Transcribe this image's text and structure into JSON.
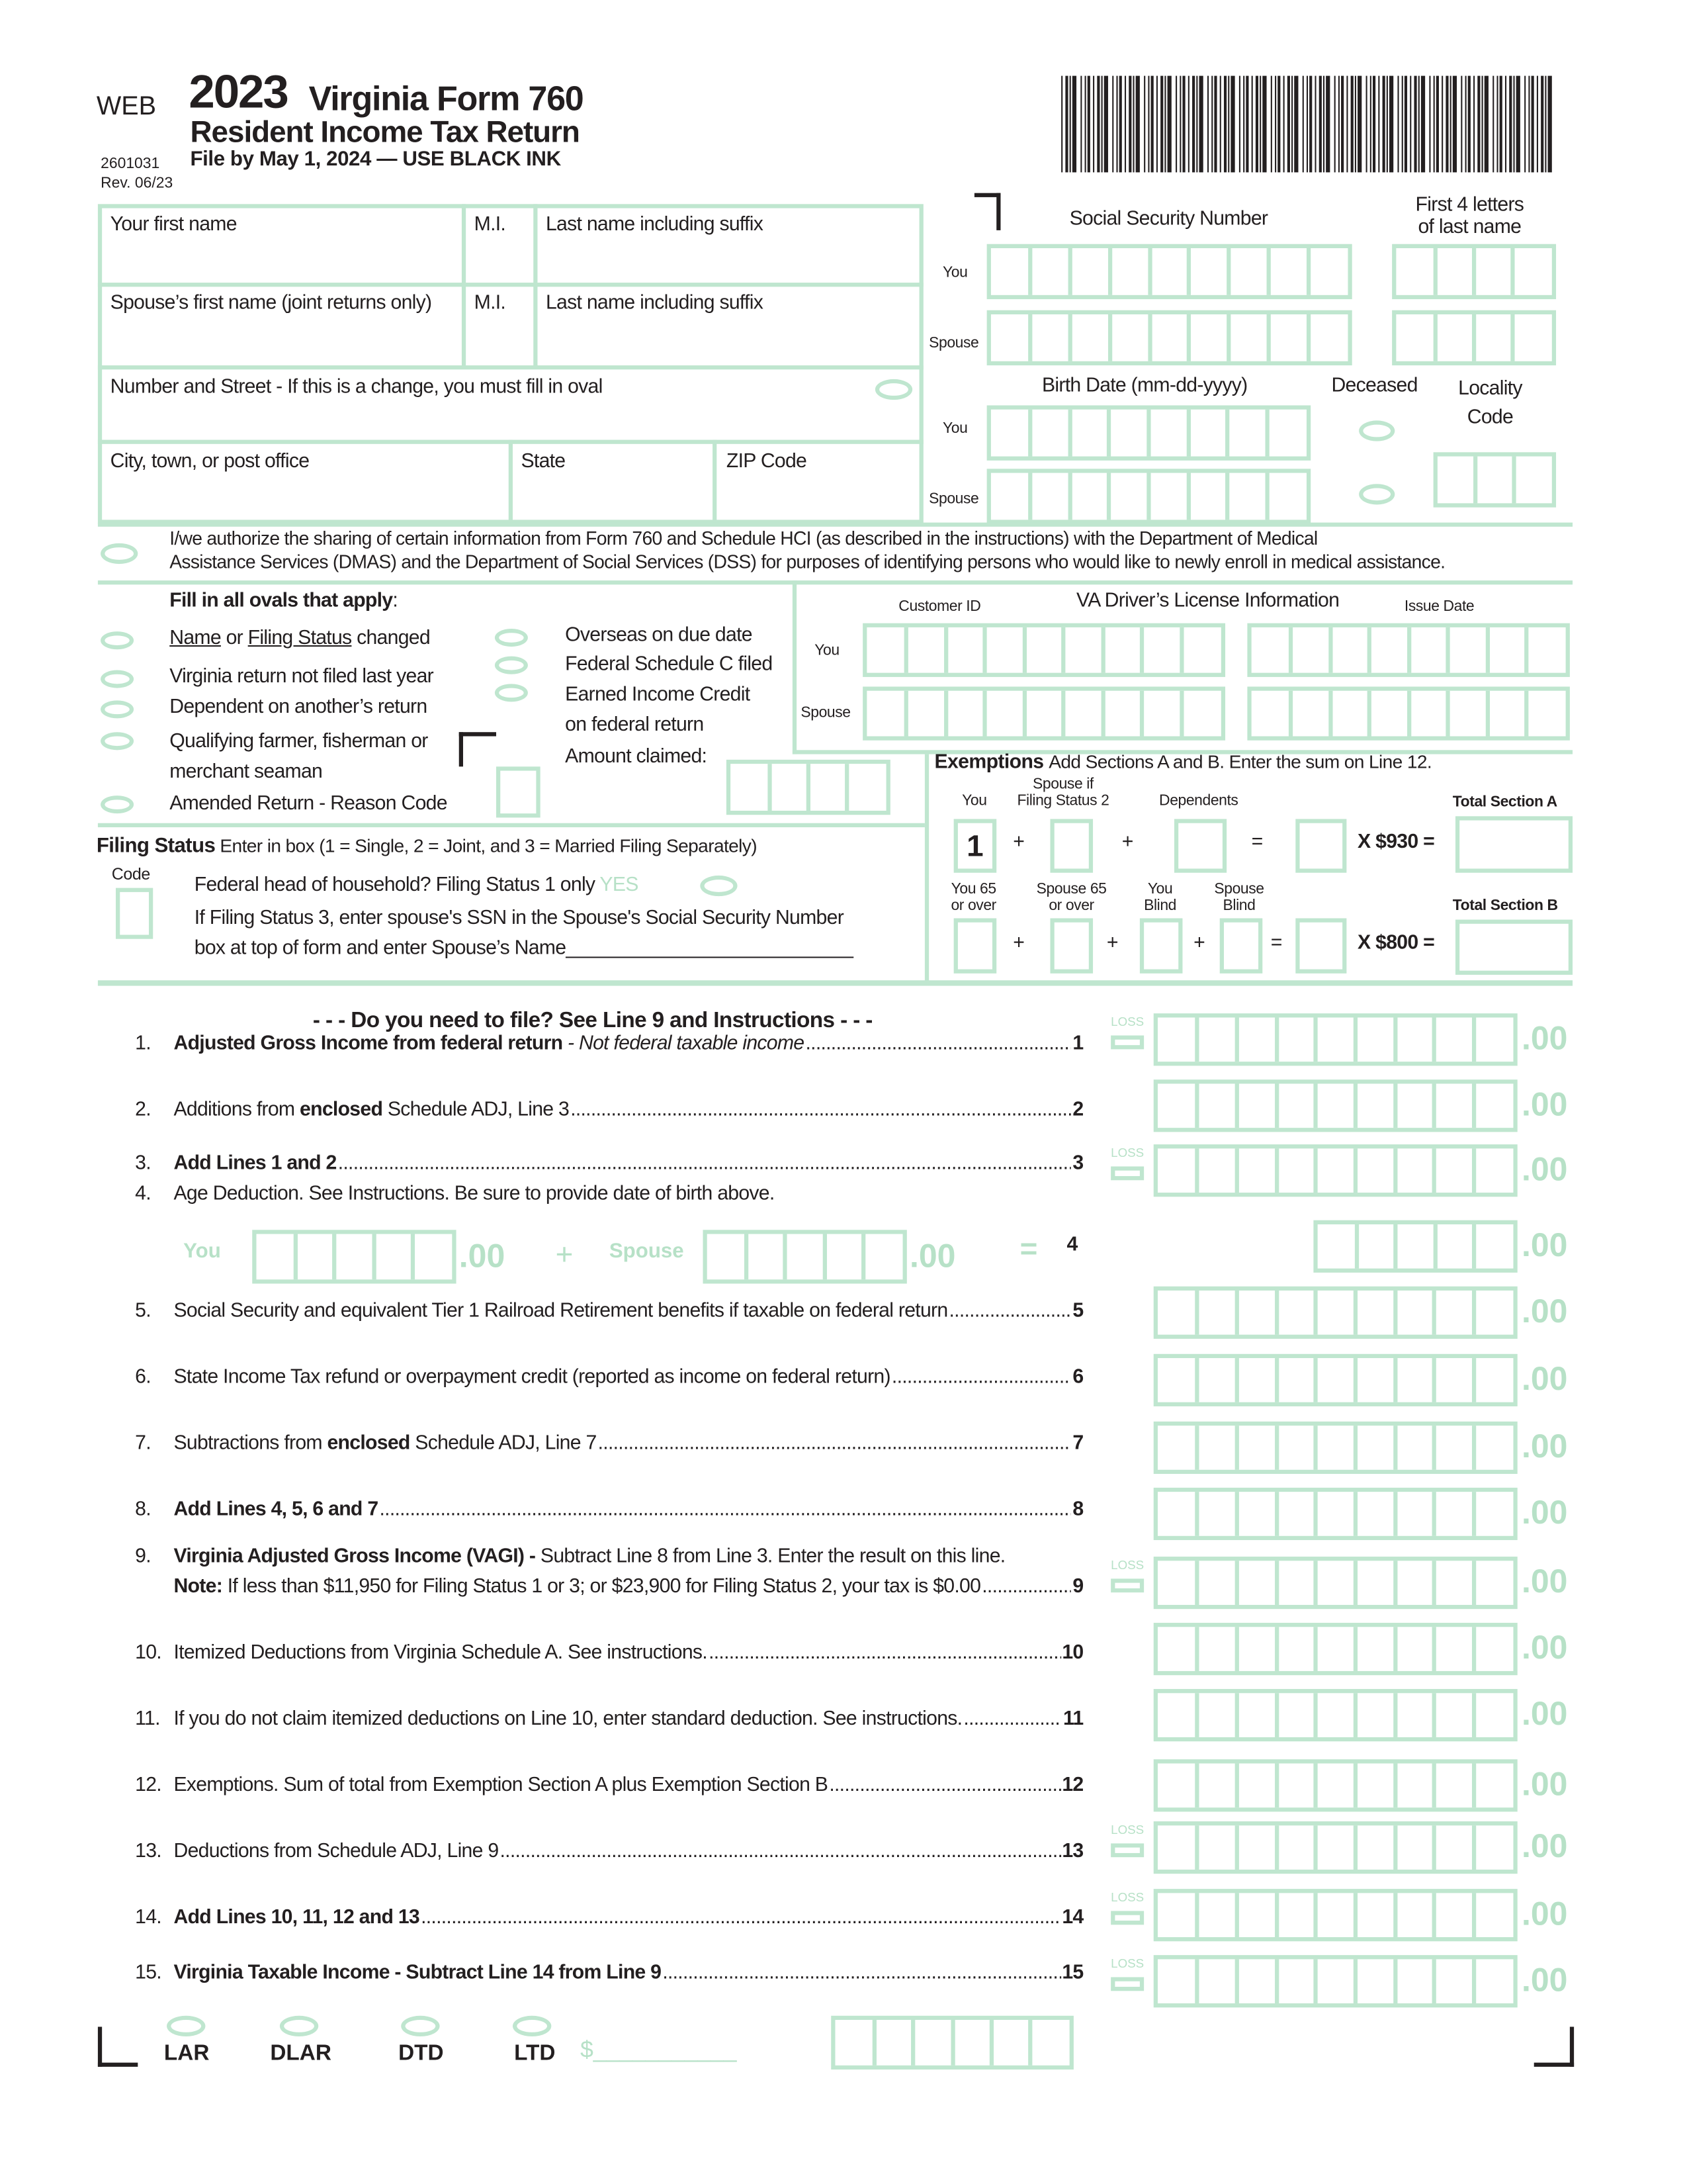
{
  "header": {
    "web": "WEB",
    "year": "2023",
    "title": "Virginia Form 760",
    "subtitle": "Resident Income Tax Return",
    "filing": "File by May 1, 2024 — USE BLACK INK",
    "form_code": "2601031",
    "revision": "Rev. 06/23"
  },
  "name_section": {
    "first_name": "Your first name",
    "mi": "M.I.",
    "last_name": "Last name including suffix",
    "spouse_first": "Spouse’s first name (joint returns only)",
    "spouse_mi": "M.I.",
    "spouse_last": "Last name including suffix",
    "street": "Number and Street - If this is a change, you must fill in oval",
    "city": "City, town, or post office",
    "state": "State",
    "zip": "ZIP Code"
  },
  "ssn": {
    "title": "Social Security Number",
    "first4_line1": "First 4 letters",
    "first4_line2": "of last name",
    "you": "You",
    "spouse": "Spouse",
    "birth_title": "Birth Date (mm-dd-yyyy)",
    "deceased": "Deceased",
    "locality_line1": "Locality",
    "locality_line2": "Code",
    "birth_you": "You",
    "birth_spouse": "Spouse"
  },
  "authorization": {
    "line1": "I/we authorize the sharing of certain information from Form 760 and Schedule HCI (as described in the instructions) with the Department of Medical",
    "line2": "Assistance Services (DMAS) and the Department of Social Services (DSS) for purposes of identifying persons who would like to newly enroll in medical assistance."
  },
  "ovals": {
    "heading": "Fill in all ovals that apply",
    "name_link": "Name",
    "or": " or ",
    "status_link": "Filing Status",
    "changed": " changed",
    "not_filed": "Virginia return not filed last year",
    "dependent": "Dependent on another’s return",
    "farmer_line1": "Qualifying farmer, fisherman or",
    "farmer_line2": "merchant seaman",
    "amended": "Amended Return - Reason Code",
    "overseas": "Overseas on due date",
    "schedule_c": "Federal Schedule C filed",
    "eic_line1": "Earned Income Credit",
    "eic_line2": "on federal return",
    "amount_claimed": "Amount claimed:"
  },
  "license": {
    "customer_id": "Customer ID",
    "title": "VA Driver’s License Information",
    "issue_date": "Issue Date",
    "you": "You",
    "spouse": "Spouse"
  },
  "filing_status": {
    "heading": "Filing Status",
    "instruction": "Enter in box (1 = Single, 2 = Joint, and 3 = Married Filing Separately)",
    "code": "Code",
    "hoh": "Federal head of household? Filing Status 1 only",
    "yes": "YES",
    "line2": "If Filing Status 3, enter spouse's SSN in the Spouse's Social Security Number",
    "line3": "box at top of form and enter Spouse’s Name___________________________"
  },
  "exemptions": {
    "heading": "Exemptions",
    "instruction": "Add Sections A and B. Enter the sum on Line 12.",
    "you": "You",
    "spouse_line1": "Spouse if",
    "spouse_line2": "Filing Status 2",
    "dependents": "Dependents",
    "total_a": "Total Section A",
    "you_value": "1",
    "mult_a": "X $930 =",
    "you65_1": "You 65",
    "you65_2": "or over",
    "sp65_1": "Spouse 65",
    "sp65_2": "or over",
    "youblind_1": "You",
    "youblind_2": "Blind",
    "spblind_1": "Spouse",
    "spblind_2": "Blind",
    "total_b": "Total Section B",
    "mult_b": "X $800 =",
    "plus": "+",
    "equals": "="
  },
  "lines_heading": "- - - Do you need to file?  See Line 9 and Instructions - - -",
  "lines": [
    {
      "n": "1.",
      "segs": [
        {
          "t": "Adjusted Gross Income from federal return",
          "s": "b"
        },
        {
          "t": " - Not federal taxable income",
          "s": "i"
        }
      ],
      "ref": "1",
      "loss": true
    },
    {
      "n": "2.",
      "segs": [
        {
          "t": "Additions from "
        },
        {
          "t": "enclosed",
          "s": "b"
        },
        {
          "t": " Schedule ADJ, Line 3"
        }
      ],
      "ref": "2"
    },
    {
      "n": "3.",
      "segs": [
        {
          "t": "Add Lines 1 and 2",
          "s": "b"
        }
      ],
      "ref": "3",
      "loss": true
    },
    {
      "n": "4.",
      "segs": [
        {
          "t": "Age Deduction. See Instructions. Be sure to provide date of birth above."
        }
      ],
      "ref": "",
      "noleader": true
    },
    {
      "n": "5.",
      "segs": [
        {
          "t": "Social Security and equivalent Tier 1 Railroad Retirement benefits if taxable on federal return"
        }
      ],
      "ref": "5"
    },
    {
      "n": "6.",
      "segs": [
        {
          "t": "State Income Tax refund or overpayment credit (reported as income on federal return)"
        }
      ],
      "ref": "6"
    },
    {
      "n": "7.",
      "segs": [
        {
          "t": "Subtractions from "
        },
        {
          "t": "enclosed",
          "s": "b"
        },
        {
          "t": " Schedule ADJ, Line 7"
        }
      ],
      "ref": "7"
    },
    {
      "n": "8.",
      "segs": [
        {
          "t": "Add Lines 4, 5, 6 and 7",
          "s": "b"
        }
      ],
      "ref": "8"
    },
    {
      "n": "9.",
      "segs": [
        {
          "t": "Virginia Adjusted Gross Income (VAGI) - ",
          "s": "b"
        },
        {
          "t": "Subtract Line 8 from Line 3. Enter the result on this line."
        }
      ],
      "ref": "",
      "noleader": true,
      "loss": true
    },
    {
      "n": "",
      "segs": [
        {
          "t": "Note:",
          "s": "b"
        },
        {
          "t": " If less than $11,950 for Filing Status 1 or 3; or $23,900 for Filing Status 2, your tax is $0.00"
        }
      ],
      "ref": "9"
    },
    {
      "n": "10.",
      "segs": [
        {
          "t": "Itemized Deductions from Virginia Schedule A. See instructions."
        }
      ],
      "ref": "10"
    },
    {
      "n": "11.",
      "segs": [
        {
          "t": "If you do not claim itemized deductions on Line 10, enter standard deduction. See instructions."
        }
      ],
      "ref": "11"
    },
    {
      "n": "12.",
      "segs": [
        {
          "t": "Exemptions. Sum of total from Exemption Section A plus Exemption Section B"
        }
      ],
      "ref": "12"
    },
    {
      "n": "13.",
      "segs": [
        {
          "t": "Deductions from Schedule ADJ, Line 9"
        }
      ],
      "ref": "13",
      "loss": true
    },
    {
      "n": "14.",
      "segs": [
        {
          "t": "Add Lines 10, 11, 12 and 13",
          "s": "b"
        }
      ],
      "ref": "14",
      "loss": true
    },
    {
      "n": "15.",
      "segs": [
        {
          "t": "Virginia Taxable Income - Subtract Line 14 from Line 9",
          "s": "b"
        }
      ],
      "ref": "15",
      "loss": true
    }
  ],
  "line4": {
    "you": "You",
    "spouse": "Spouse",
    "plus": "+",
    "equals": "=",
    "ref": "4"
  },
  "cents": ".00",
  "loss_label": "LOSS",
  "footer": {
    "lar": "LAR",
    "dlar": "DLAR",
    "dtd": "DTD",
    "ltd": "LTD",
    "dollar": "$___________"
  },
  "colors": {
    "form_green": "#bfe6cf",
    "ink": "#231f20"
  }
}
